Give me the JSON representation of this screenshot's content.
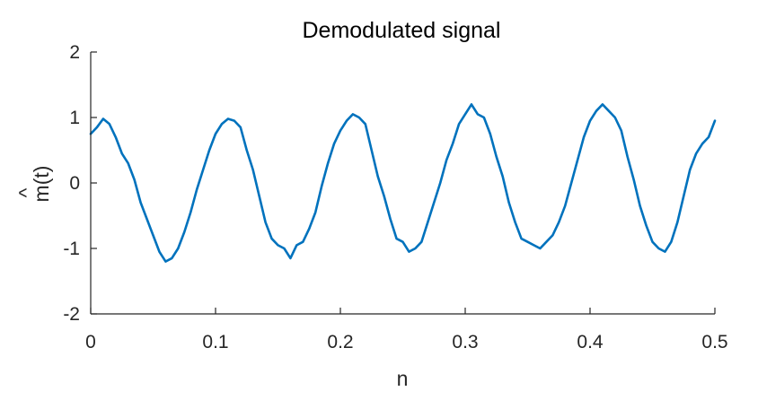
{
  "chart_data": {
    "type": "line",
    "title": "Demodulated signal",
    "xlabel": "n",
    "ylabel": "m̂(t)",
    "ylabel_base": "m(t)",
    "ylabel_accent": "^",
    "xlim": [
      0,
      0.5
    ],
    "ylim": [
      -2,
      2
    ],
    "xticks": [
      0,
      0.1,
      0.2,
      0.3,
      0.4,
      0.5
    ],
    "xtick_labels": [
      "0",
      "0.1",
      "0.2",
      "0.3",
      "0.4",
      "0.5"
    ],
    "yticks": [
      -2,
      -1,
      0,
      1,
      2
    ],
    "ytick_labels": [
      "-2",
      "-1",
      "0",
      "1",
      "2"
    ],
    "grid": false,
    "series": [
      {
        "color": "#0072BD",
        "x": [
          0,
          0.005,
          0.01,
          0.015,
          0.02,
          0.025,
          0.03,
          0.035,
          0.04,
          0.045,
          0.05,
          0.055,
          0.06,
          0.065,
          0.07,
          0.075,
          0.08,
          0.085,
          0.09,
          0.095,
          0.1,
          0.105,
          0.11,
          0.115,
          0.12,
          0.125,
          0.13,
          0.135,
          0.14,
          0.145,
          0.15,
          0.155,
          0.16,
          0.165,
          0.17,
          0.175,
          0.18,
          0.185,
          0.19,
          0.195,
          0.2,
          0.205,
          0.21,
          0.215,
          0.22,
          0.225,
          0.23,
          0.235,
          0.24,
          0.245,
          0.25,
          0.255,
          0.26,
          0.265,
          0.27,
          0.275,
          0.28,
          0.285,
          0.29,
          0.295,
          0.3,
          0.305,
          0.31,
          0.315,
          0.32,
          0.325,
          0.33,
          0.335,
          0.34,
          0.345,
          0.35,
          0.355,
          0.36,
          0.365,
          0.37,
          0.375,
          0.38,
          0.385,
          0.39,
          0.395,
          0.4,
          0.405,
          0.41,
          0.415,
          0.42,
          0.425,
          0.43,
          0.435,
          0.44,
          0.445,
          0.45,
          0.455,
          0.46,
          0.465,
          0.47,
          0.475,
          0.48,
          0.485,
          0.49,
          0.495,
          0.5
        ],
        "y": [
          0.75,
          0.85,
          0.98,
          0.9,
          0.7,
          0.45,
          0.3,
          0.05,
          -0.3,
          -0.55,
          -0.8,
          -1.05,
          -1.2,
          -1.15,
          -1.0,
          -0.75,
          -0.45,
          -0.1,
          0.2,
          0.5,
          0.75,
          0.9,
          0.98,
          0.95,
          0.85,
          0.5,
          0.2,
          -0.2,
          -0.6,
          -0.85,
          -0.95,
          -1.0,
          -1.15,
          -0.95,
          -0.9,
          -0.7,
          -0.45,
          -0.05,
          0.3,
          0.6,
          0.8,
          0.95,
          1.05,
          1.0,
          0.9,
          0.5,
          0.1,
          -0.2,
          -0.55,
          -0.85,
          -0.9,
          -1.05,
          -1.0,
          -0.9,
          -0.6,
          -0.3,
          0.0,
          0.35,
          0.6,
          0.9,
          1.05,
          1.2,
          1.05,
          1.0,
          0.75,
          0.4,
          0.1,
          -0.3,
          -0.6,
          -0.85,
          -0.9,
          -0.95,
          -1.0,
          -0.9,
          -0.8,
          -0.6,
          -0.35,
          0.0,
          0.35,
          0.7,
          0.95,
          1.1,
          1.2,
          1.1,
          1.0,
          0.8,
          0.4,
          0.05,
          -0.35,
          -0.65,
          -0.9,
          -1.0,
          -1.05,
          -0.9,
          -0.6,
          -0.2,
          0.2,
          0.45,
          0.6,
          0.7,
          0.95
        ]
      }
    ]
  }
}
